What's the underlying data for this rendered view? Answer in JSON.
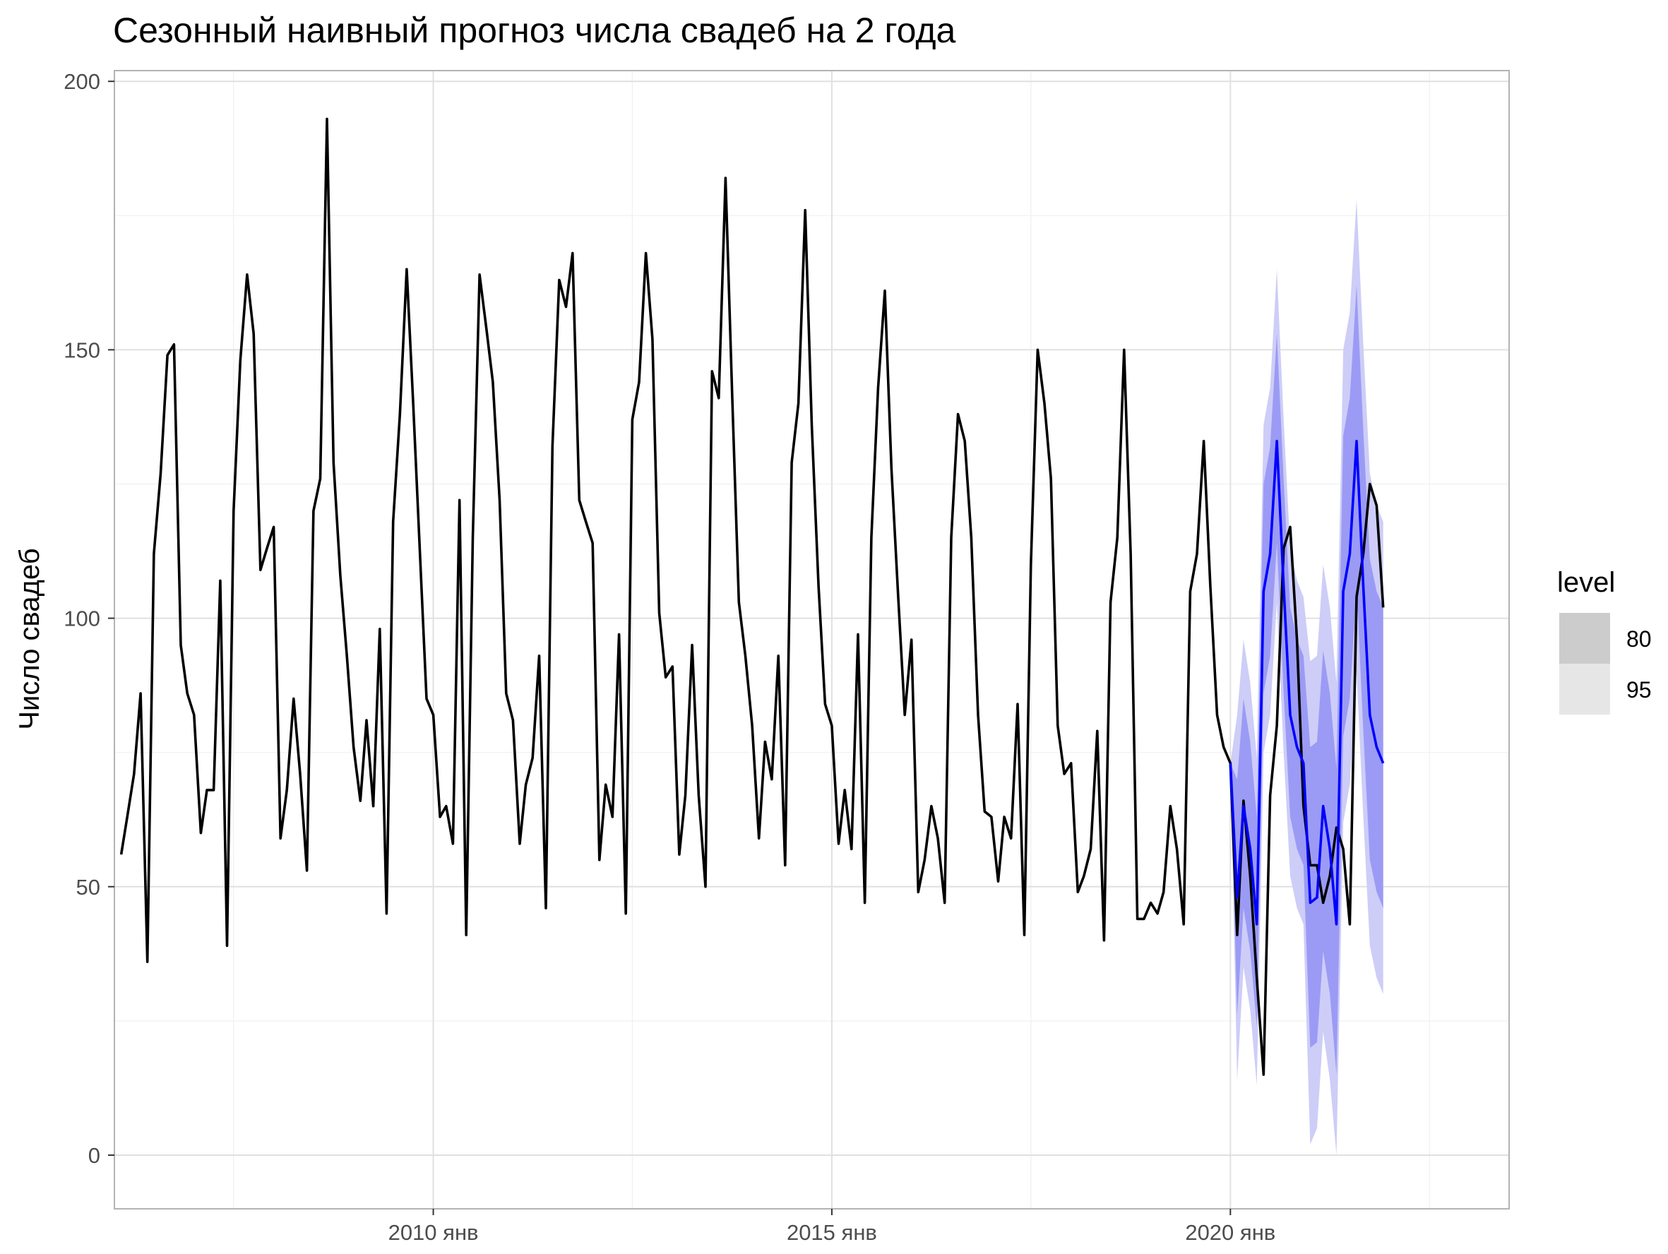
{
  "chart_data": {
    "type": "line",
    "title": "Сезонный наивный прогноз числа свадеб на 2 года",
    "xlabel": "",
    "ylabel": "Число свадеб",
    "x_range": [
      "2006-01-01",
      "2023-07-01"
    ],
    "ylim": [
      -10,
      202
    ],
    "y_ticks": [
      0,
      50,
      100,
      150,
      200
    ],
    "y_minor_ticks": [
      25,
      75,
      125,
      175
    ],
    "x_ticks": [
      {
        "date": "2010-01-01",
        "label": "2010 янв"
      },
      {
        "date": "2015-01-01",
        "label": "2015 янв"
      },
      {
        "date": "2020-01-01",
        "label": "2020 янв"
      }
    ],
    "x_minor_ticks": [
      "2007-07-01",
      "2012-07-01",
      "2017-07-01",
      "2022-07-01"
    ],
    "grid": true,
    "legend": {
      "title": "level",
      "placement": "right",
      "items": [
        {
          "label": "80",
          "color": "#cccccc"
        },
        {
          "label": "95",
          "color": "#e6e6e6"
        }
      ]
    },
    "colors": {
      "actual": "#000000",
      "forecast": "#0000ff",
      "band80": "#9b9bf5",
      "band95": "#cdcdf8"
    },
    "actual": {
      "name": "",
      "start": "2006-02",
      "values": [
        56,
        63,
        71,
        86,
        36,
        112,
        127,
        149,
        151,
        95,
        86,
        82,
        60,
        68,
        68,
        107,
        39,
        120,
        148,
        164,
        153,
        109,
        113,
        117,
        59,
        68,
        85,
        71,
        53,
        120,
        126,
        193,
        129,
        108,
        93,
        76,
        66,
        81,
        65,
        98,
        45,
        118,
        138,
        165,
        140,
        112,
        85,
        82,
        63,
        65,
        58,
        122,
        41,
        115,
        164,
        154,
        144,
        122,
        86,
        81,
        58,
        69,
        74,
        93,
        46,
        132,
        163,
        158,
        168,
        122,
        118,
        114,
        55,
        69,
        63,
        97,
        45,
        137,
        144,
        168,
        152,
        101,
        89,
        91,
        56,
        67,
        95,
        67,
        50,
        146,
        141,
        182,
        142,
        103,
        93,
        80,
        59,
        77,
        70,
        93,
        54,
        129,
        140,
        176,
        136,
        106,
        84,
        80,
        58,
        68,
        57,
        97,
        47,
        115,
        143,
        161,
        128,
        104,
        82,
        96,
        49,
        55,
        65,
        59,
        47,
        115,
        138,
        133,
        115,
        82,
        64,
        63,
        51,
        63,
        59,
        84,
        41,
        110,
        150,
        140,
        126,
        80,
        71,
        73,
        49,
        52,
        57,
        79,
        40,
        103,
        115,
        150,
        112,
        44,
        44,
        47,
        45,
        49,
        65,
        57,
        43,
        105,
        112,
        133,
        106,
        82,
        76,
        73,
        41,
        66,
        52,
        33,
        15,
        67,
        80,
        113,
        117,
        96,
        65,
        54,
        54,
        47,
        52,
        61,
        57,
        43,
        104,
        112,
        125,
        121,
        102
      ]
    },
    "forecast": {
      "start": "2020-01",
      "mean": [
        73,
        48,
        65,
        57,
        43,
        105,
        112,
        133,
        106,
        82,
        76,
        73,
        47,
        48,
        65,
        57,
        43,
        105,
        112,
        133,
        106,
        82,
        76,
        73
      ],
      "lo80": [
        73,
        26,
        46,
        38,
        24,
        86,
        93,
        114,
        86,
        63,
        57,
        54,
        20,
        21,
        38,
        30,
        15,
        78,
        85,
        106,
        79,
        55,
        49,
        46
      ],
      "hi80": [
        73,
        70,
        85,
        77,
        63,
        125,
        132,
        153,
        126,
        102,
        96,
        93,
        76,
        77,
        94,
        86,
        72,
        134,
        141,
        162,
        135,
        111,
        105,
        102
      ],
      "lo95": [
        73,
        14,
        35,
        27,
        13,
        75,
        82,
        103,
        75,
        52,
        46,
        43,
        2,
        5,
        23,
        14,
        0,
        62,
        69,
        90,
        63,
        39,
        33,
        30
      ],
      "hi95": [
        73,
        82,
        96,
        88,
        74,
        136,
        143,
        165,
        137,
        113,
        107,
        104,
        92,
        93,
        110,
        102,
        88,
        150,
        157,
        178,
        151,
        127,
        121,
        118
      ]
    }
  }
}
